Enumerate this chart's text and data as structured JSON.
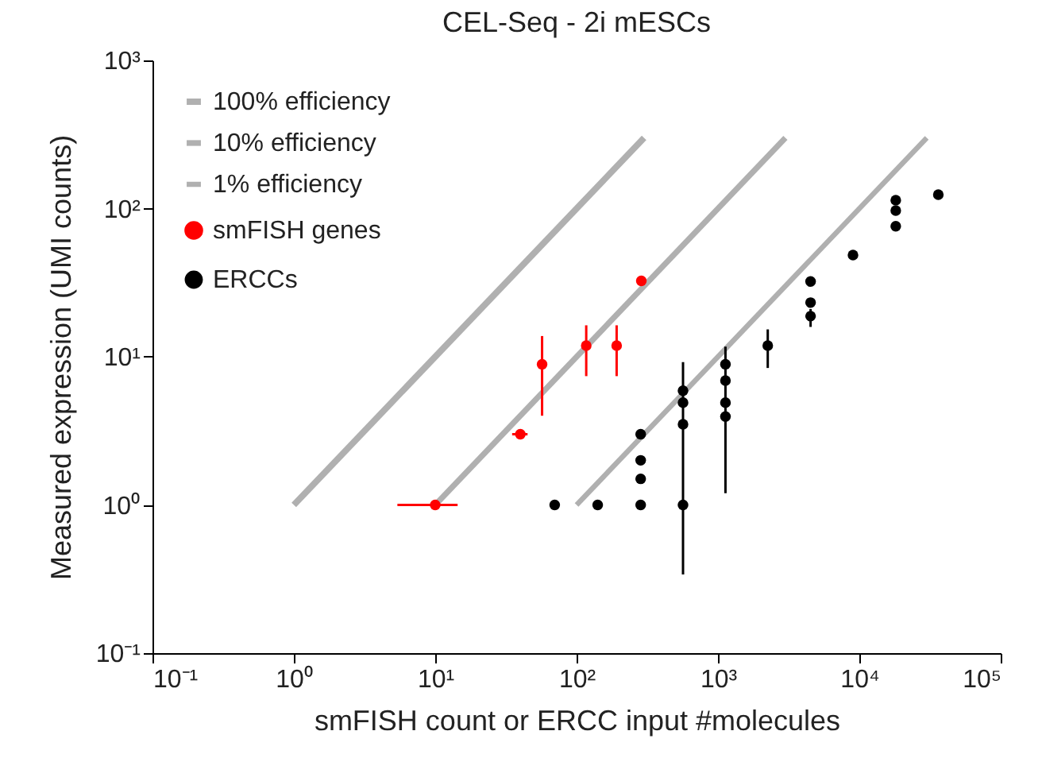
{
  "chart_data": {
    "type": "scatter",
    "title": "CEL-Seq - 2i mESCs",
    "xlabel": "smFISH count or ERCC input #molecules",
    "ylabel": "Measured expression (UMI counts)",
    "log": "xy",
    "grid": false,
    "legend": "top left",
    "marker": "circle",
    "xlim": [
      0.1,
      100000
    ],
    "ylim": [
      0.1,
      1000
    ],
    "xticks": [
      {
        "value": 0.1,
        "label": "10⁻¹"
      },
      {
        "value": 1,
        "label": "10⁰"
      },
      {
        "value": 10,
        "label": "10¹"
      },
      {
        "value": 100,
        "label": "10²"
      },
      {
        "value": 1000,
        "label": "10³"
      },
      {
        "value": 10000,
        "label": "10⁴"
      },
      {
        "value": 100000,
        "label": "10⁵"
      }
    ],
    "yticks": [
      {
        "value": 0.1,
        "label": "10⁻¹"
      },
      {
        "value": 1,
        "label": "10⁰"
      },
      {
        "value": 10,
        "label": "10¹"
      },
      {
        "value": 100,
        "label": "10²"
      },
      {
        "value": 1000,
        "label": "10³"
      }
    ],
    "series": [
      {
        "name": "100% efficiency",
        "type": "line",
        "marker": "none",
        "line_style": "solid",
        "color": "#b0b0b0",
        "x": [
          1,
          300
        ],
        "values": [
          1,
          300
        ]
      },
      {
        "name": "10% efficiency",
        "type": "line",
        "marker": "none",
        "line_style": "solid",
        "color": "#b0b0b0",
        "x": [
          10,
          3000
        ],
        "values": [
          1,
          300
        ]
      },
      {
        "name": "1% efficiency",
        "type": "line",
        "marker": "none",
        "line_style": "solid",
        "color": "#b0b0b0",
        "x": [
          100,
          30000
        ],
        "values": [
          1,
          300
        ]
      },
      {
        "name": "smFISH genes",
        "type": "scatter",
        "color": "#ff0000",
        "x": [
          10,
          40,
          57,
          117,
          192,
          287
        ],
        "values": [
          1,
          3,
          8.9,
          11.9,
          11.9,
          32.5
        ],
        "errors": [
          null,
          null,
          [
            4.0,
            13.8
          ],
          [
            7.4,
            16.3
          ],
          [
            7.4,
            16.3
          ],
          null
        ],
        "xerrors": [
          [
            5.4,
            14.4
          ],
          [
            35,
            45
          ],
          null,
          null,
          null,
          null
        ]
      },
      {
        "name": "ERCCs",
        "type": "scatter",
        "color": "#000000",
        "x": [
          70,
          141,
          284,
          284,
          284,
          284,
          566,
          566,
          566,
          566,
          1130,
          1130,
          1130,
          1130,
          2250,
          4520,
          4520,
          4520,
          9020,
          18100,
          18100,
          18100,
          36200
        ],
        "values": [
          1,
          1,
          3,
          2,
          1.5,
          1,
          5.9,
          4.9,
          3.5,
          1,
          8.9,
          6.9,
          4.9,
          3.95,
          11.9,
          32.2,
          23.2,
          18.8,
          48.6,
          114,
          97,
          76,
          124
        ],
        "errors": [
          null,
          null,
          null,
          null,
          null,
          null,
          null,
          null,
          null,
          [
            0.34,
            9.2
          ],
          null,
          null,
          null,
          [
            1.2,
            11.7
          ],
          [
            8.4,
            15.3
          ],
          null,
          null,
          [
            15.9,
            21
          ],
          null,
          null,
          null,
          null,
          null
        ]
      }
    ]
  }
}
